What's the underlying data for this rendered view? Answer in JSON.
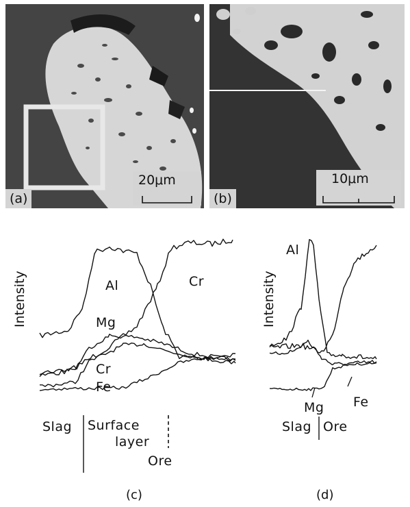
{
  "panel_a": {
    "label": "(a)",
    "scale": "20μm"
  },
  "panel_b": {
    "label": "(b)",
    "scale": "10μm"
  },
  "panel_c": {
    "ylabel": "Intensity",
    "series": [
      "Al",
      "Cr",
      "Mg",
      "Cr",
      "Fe"
    ],
    "regions": {
      "slag": "Slag",
      "surface1": "Surface",
      "surface2": "layer",
      "ore": "Ore"
    },
    "caption": "(c)"
  },
  "panel_d": {
    "ylabel": "Intensity",
    "series": [
      "Al",
      "Mg",
      "Fe"
    ],
    "regions": {
      "slag": "Slag",
      "ore": "Ore"
    },
    "caption": "(d)"
  },
  "colors": {
    "image_dark": "#3a3a3a",
    "image_light": "#d8d8d8",
    "ink": "#111111"
  }
}
